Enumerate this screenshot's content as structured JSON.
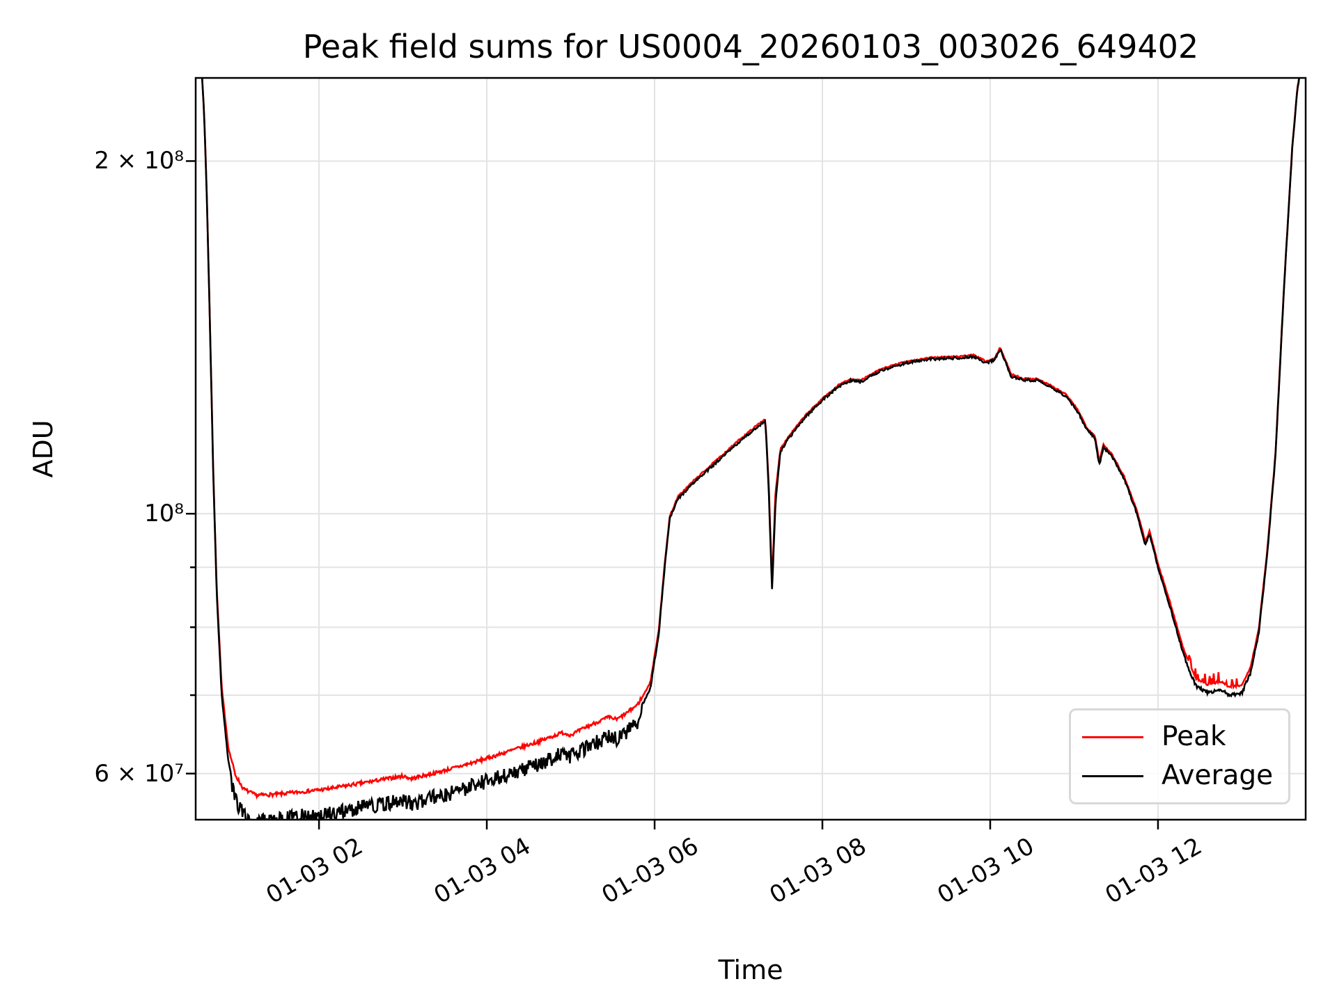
{
  "chart_data": {
    "type": "line",
    "title": "Peak field sums for US0004_20260103_003026_649402",
    "xlabel": "Time",
    "ylabel": "ADU",
    "y_scale": "log",
    "grid": true,
    "grid_color": "#e3e3e3",
    "background_color": "#ffffff",
    "x_unit": "hours on 01-03",
    "x_range": [
      0.53,
      13.76
    ],
    "y_range": [
      54800000.0,
      235500000.0
    ],
    "x_ticks": [
      {
        "t": 2,
        "label": "01-03 02"
      },
      {
        "t": 4,
        "label": "01-03 04"
      },
      {
        "t": 6,
        "label": "01-03 06"
      },
      {
        "t": 8,
        "label": "01-03 08"
      },
      {
        "t": 10,
        "label": "01-03 10"
      },
      {
        "t": 12,
        "label": "01-03 12"
      }
    ],
    "y_ticks": [
      {
        "v": 200000000.0,
        "label": "2 × 10⁸"
      },
      {
        "v": 100000000.0,
        "label": "10⁸"
      },
      {
        "v": 60000000.0,
        "label": "6 × 10⁷"
      }
    ],
    "y_minor_gridlines": [
      70000000.0,
      80000000.0,
      90000000.0
    ],
    "legend": {
      "position": "lower right",
      "entries": [
        {
          "label": "Peak",
          "color": "#ff0000"
        },
        {
          "label": "Average",
          "color": "#000000"
        }
      ]
    },
    "noise_segments": [
      {
        "t0": 0.95,
        "t1": 5.85,
        "avg_amp": 0.03,
        "avg_mode": "down",
        "peak_amp": 0.007,
        "peak_mode": "up"
      },
      {
        "t0": 12.33,
        "t1": 13.03,
        "avg_amp": 0.006,
        "avg_mode": "down",
        "peak_amp": 0.022,
        "peak_mode": "spike"
      },
      {
        "t0": -1,
        "t1": 99,
        "avg_amp": 0.0024,
        "avg_mode": "sym",
        "peak_amp": 0.003,
        "peak_mode": "up"
      }
    ],
    "series": [
      {
        "name": "Peak",
        "color": "#ff0000",
        "points": [
          [
            0.53,
            240000000.0
          ],
          [
            0.6,
            240000000.0
          ],
          [
            0.63,
            220000000.0
          ],
          [
            0.66,
            190000000.0
          ],
          [
            0.7,
            145000000.0
          ],
          [
            0.74,
            108500000.0
          ],
          [
            0.78,
            86500000.0
          ],
          [
            0.84,
            71000000.0
          ],
          [
            0.92,
            63000000.0
          ],
          [
            1.0,
            59700000.0
          ],
          [
            1.1,
            58000000.0
          ],
          [
            1.25,
            57300000.0
          ],
          [
            1.5,
            57400000.0
          ],
          [
            1.8,
            57700000.0
          ],
          [
            2.1,
            58000000.0
          ],
          [
            2.4,
            58500000.0
          ],
          [
            2.7,
            59000000.0
          ],
          [
            3.0,
            59500000.0
          ],
          [
            3.1,
            59200000.0
          ],
          [
            3.4,
            59900000.0
          ],
          [
            3.7,
            60700000.0
          ],
          [
            4.0,
            61600000.0
          ],
          [
            4.3,
            62600000.0
          ],
          [
            4.6,
            63600000.0
          ],
          [
            4.9,
            64800000.0
          ],
          [
            5.0,
            64500000.0
          ],
          [
            5.2,
            65600000.0
          ],
          [
            5.45,
            66800000.0
          ],
          [
            5.55,
            66500000.0
          ],
          [
            5.65,
            67200000.0
          ],
          [
            5.8,
            68500000.0
          ],
          [
            5.95,
            71700000.0
          ],
          [
            6.05,
            79500000.0
          ],
          [
            6.12,
            90400000.0
          ],
          [
            6.18,
            99300000.0
          ],
          [
            6.28,
            103300000.0
          ],
          [
            6.45,
            106300000.0
          ],
          [
            6.7,
            110300000.0
          ],
          [
            7.0,
            115300000.0
          ],
          [
            7.25,
            119300000.0
          ],
          [
            7.32,
            120300000.0
          ],
          [
            7.36,
            106000000.0
          ],
          [
            7.4,
            87000000.0
          ],
          [
            7.44,
            104000000.0
          ],
          [
            7.5,
            113500000.0
          ],
          [
            7.6,
            116300000.0
          ],
          [
            7.8,
            121200000.0
          ],
          [
            8.0,
            125200000.0
          ],
          [
            8.2,
            128700000.0
          ],
          [
            8.35,
            130200000.0
          ],
          [
            8.45,
            129700000.0
          ],
          [
            8.7,
            132700000.0
          ],
          [
            9.0,
            134700000.0
          ],
          [
            9.3,
            135700000.0
          ],
          [
            9.6,
            136000000.0
          ],
          [
            9.8,
            136400000.0
          ],
          [
            9.95,
            134700000.0
          ],
          [
            10.05,
            135400000.0
          ],
          [
            10.12,
            138400000.0
          ],
          [
            10.25,
            131300000.0
          ],
          [
            10.4,
            130200000.0
          ],
          [
            10.55,
            130200000.0
          ],
          [
            10.7,
            128700000.0
          ],
          [
            10.9,
            126300000.0
          ],
          [
            11.05,
            122300000.0
          ],
          [
            11.15,
            118300000.0
          ],
          [
            11.25,
            116300000.0
          ],
          [
            11.3,
            110700000.0
          ],
          [
            11.35,
            114300000.0
          ],
          [
            11.45,
            112300000.0
          ],
          [
            11.6,
            107300000.0
          ],
          [
            11.75,
            100400000.0
          ],
          [
            11.85,
            94500000.0
          ],
          [
            11.9,
            96500000.0
          ],
          [
            12.0,
            90500000.0
          ],
          [
            12.15,
            83600000.0
          ],
          [
            12.3,
            76700000.0
          ],
          [
            12.45,
            72200000.0
          ],
          [
            12.6,
            71300000.0
          ],
          [
            12.75,
            71800000.0
          ],
          [
            12.85,
            71000000.0
          ],
          [
            13.0,
            71300000.0
          ],
          [
            13.1,
            73700000.0
          ],
          [
            13.2,
            79500000.0
          ],
          [
            13.3,
            92500000.0
          ],
          [
            13.4,
            112300000.0
          ],
          [
            13.5,
            155300000.0
          ],
          [
            13.6,
            205300000.0
          ],
          [
            13.66,
            230200000.0
          ],
          [
            13.7,
            240000000.0
          ],
          [
            13.76,
            240000000.0
          ]
        ]
      },
      {
        "name": "Average",
        "color": "#000000",
        "points": [
          [
            0.53,
            240000000.0
          ],
          [
            0.6,
            240000000.0
          ],
          [
            0.63,
            220000000.0
          ],
          [
            0.66,
            190000000.0
          ],
          [
            0.7,
            145000000.0
          ],
          [
            0.74,
            108000000.0
          ],
          [
            0.78,
            86000000.0
          ],
          [
            0.84,
            70000000.0
          ],
          [
            0.92,
            61500000.0
          ],
          [
            1.0,
            58000000.0
          ],
          [
            1.1,
            56200000.0
          ],
          [
            1.25,
            55500000.0
          ],
          [
            1.5,
            55600000.0
          ],
          [
            1.8,
            56000000.0
          ],
          [
            2.1,
            56200000.0
          ],
          [
            2.4,
            56800000.0
          ],
          [
            2.7,
            57300000.0
          ],
          [
            3.0,
            57800000.0
          ],
          [
            3.1,
            57400000.0
          ],
          [
            3.4,
            58200000.0
          ],
          [
            3.7,
            59000000.0
          ],
          [
            4.0,
            60000000.0
          ],
          [
            4.3,
            61000000.0
          ],
          [
            4.6,
            62000000.0
          ],
          [
            4.9,
            63300000.0
          ],
          [
            5.0,
            63000000.0
          ],
          [
            5.2,
            64200000.0
          ],
          [
            5.45,
            65500000.0
          ],
          [
            5.55,
            65200000.0
          ],
          [
            5.65,
            66000000.0
          ],
          [
            5.8,
            67500000.0
          ],
          [
            5.95,
            71000000.0
          ],
          [
            6.05,
            79000000.0
          ],
          [
            6.12,
            90000000.0
          ],
          [
            6.18,
            99000000.0
          ],
          [
            6.28,
            103000000.0
          ],
          [
            6.45,
            106000000.0
          ],
          [
            6.7,
            110000000.0
          ],
          [
            7.0,
            115000000.0
          ],
          [
            7.25,
            119000000.0
          ],
          [
            7.32,
            120000000.0
          ],
          [
            7.36,
            105000000.0
          ],
          [
            7.4,
            86000000.0
          ],
          [
            7.44,
            102000000.0
          ],
          [
            7.5,
            113000000.0
          ],
          [
            7.6,
            116000000.0
          ],
          [
            7.8,
            121000000.0
          ],
          [
            8.0,
            125000000.0
          ],
          [
            8.2,
            128500000.0
          ],
          [
            8.35,
            130000000.0
          ],
          [
            8.45,
            129500000.0
          ],
          [
            8.7,
            132500000.0
          ],
          [
            9.0,
            134500000.0
          ],
          [
            9.3,
            135500000.0
          ],
          [
            9.6,
            135800000.0
          ],
          [
            9.8,
            136200000.0
          ],
          [
            9.95,
            134500000.0
          ],
          [
            10.05,
            135200000.0
          ],
          [
            10.12,
            138200000.0
          ],
          [
            10.25,
            131000000.0
          ],
          [
            10.4,
            130000000.0
          ],
          [
            10.55,
            130000000.0
          ],
          [
            10.7,
            128500000.0
          ],
          [
            10.9,
            126000000.0
          ],
          [
            11.05,
            122000000.0
          ],
          [
            11.15,
            118000000.0
          ],
          [
            11.25,
            116000000.0
          ],
          [
            11.3,
            110000000.0
          ],
          [
            11.35,
            114000000.0
          ],
          [
            11.45,
            112000000.0
          ],
          [
            11.6,
            107000000.0
          ],
          [
            11.75,
            100000000.0
          ],
          [
            11.85,
            94000000.0
          ],
          [
            11.9,
            96000000.0
          ],
          [
            12.0,
            90000000.0
          ],
          [
            12.15,
            83000000.0
          ],
          [
            12.3,
            76000000.0
          ],
          [
            12.45,
            71500000.0
          ],
          [
            12.6,
            70500000.0
          ],
          [
            12.75,
            71000000.0
          ],
          [
            12.85,
            70200000.0
          ],
          [
            13.0,
            70500000.0
          ],
          [
            13.1,
            73000000.0
          ],
          [
            13.2,
            79000000.0
          ],
          [
            13.3,
            92000000.0
          ],
          [
            13.4,
            112000000.0
          ],
          [
            13.5,
            155000000.0
          ],
          [
            13.6,
            205000000.0
          ],
          [
            13.66,
            230000000.0
          ],
          [
            13.7,
            240000000.0
          ],
          [
            13.76,
            240000000.0
          ]
        ]
      }
    ]
  }
}
